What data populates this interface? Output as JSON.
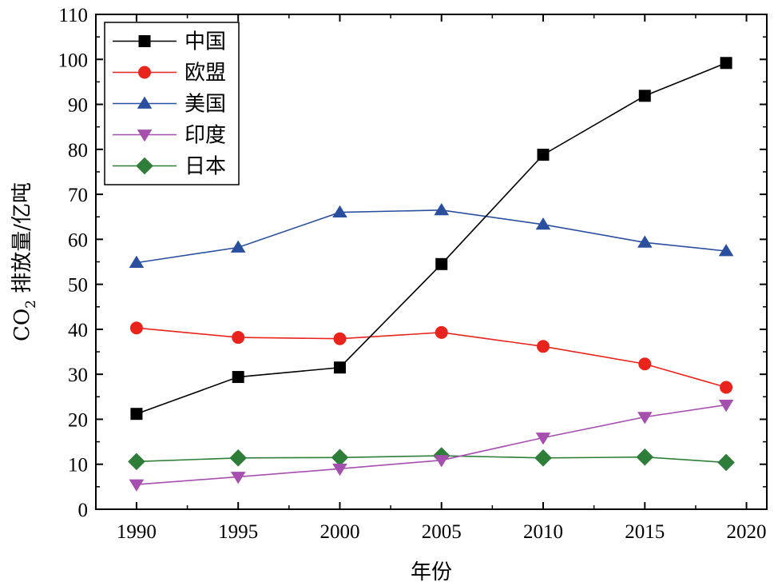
{
  "chart_data": {
    "type": "line",
    "xlabel": "年份",
    "ylabel": {
      "main": "CO",
      "subscript": "2",
      "rest": " 排放量/亿吨"
    },
    "xlim": [
      1988,
      2021
    ],
    "ylim": [
      0,
      110
    ],
    "xticks": [
      1990,
      1995,
      2000,
      2005,
      2010,
      2015,
      2020
    ],
    "yticks": [
      0,
      10,
      20,
      30,
      40,
      50,
      60,
      70,
      80,
      90,
      100,
      110
    ],
    "grid": false,
    "legend_position": "top-left",
    "x": [
      1990,
      1995,
      2000,
      2005,
      2010,
      2015,
      2019
    ],
    "series": [
      {
        "name": "中国",
        "color": "#000000",
        "marker": "square",
        "values": [
          21.2,
          29.4,
          31.5,
          54.5,
          78.8,
          91.9,
          99.2
        ]
      },
      {
        "name": "欧盟",
        "color": "#e8241c",
        "marker": "circle",
        "values": [
          40.3,
          38.2,
          37.9,
          39.3,
          36.2,
          32.3,
          27.1
        ]
      },
      {
        "name": "美国",
        "color": "#2a4f9f",
        "marker": "triangle-up",
        "values": [
          54.8,
          58.2,
          66.0,
          66.5,
          63.3,
          59.3,
          57.4
        ]
      },
      {
        "name": "印度",
        "color": "#a54fae",
        "marker": "triangle-down",
        "values": [
          5.5,
          7.2,
          9.0,
          10.9,
          15.9,
          20.5,
          23.2
        ]
      },
      {
        "name": "日本",
        "color": "#2e7d38",
        "marker": "diamond",
        "values": [
          10.6,
          11.4,
          11.5,
          11.9,
          11.4,
          11.6,
          10.4
        ]
      }
    ]
  }
}
